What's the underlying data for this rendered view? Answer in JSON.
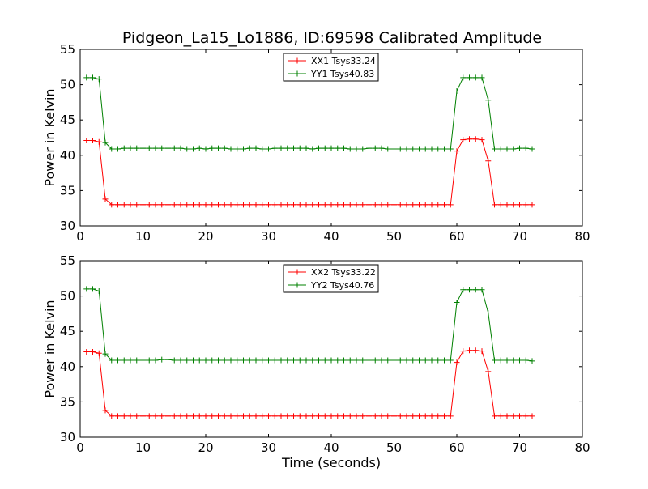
{
  "page": {
    "title": "Pidgeon_La15_Lo1886, ID:69598 Calibrated Amplitude"
  },
  "chart_data": [
    {
      "type": "line",
      "ylabel": "Power in Kelvin",
      "xlabel": "",
      "xlim": [
        0,
        80
      ],
      "ylim": [
        30,
        55
      ],
      "xticks": [
        0,
        10,
        20,
        30,
        40,
        50,
        60,
        70,
        80
      ],
      "yticks": [
        30,
        35,
        40,
        45,
        50,
        55
      ],
      "legend_position": "top-center",
      "x": [
        1,
        2,
        3,
        4,
        5,
        6,
        7,
        8,
        9,
        10,
        11,
        12,
        13,
        14,
        15,
        16,
        17,
        18,
        19,
        20,
        21,
        22,
        23,
        24,
        25,
        26,
        27,
        28,
        29,
        30,
        31,
        32,
        33,
        34,
        35,
        36,
        37,
        38,
        39,
        40,
        41,
        42,
        43,
        44,
        45,
        46,
        47,
        48,
        49,
        50,
        51,
        52,
        53,
        54,
        55,
        56,
        57,
        58,
        59,
        60,
        61,
        62,
        63,
        64,
        65,
        66,
        67,
        68,
        69,
        70,
        71,
        72
      ],
      "series": [
        {
          "name": "XX1 Tsys33.24",
          "color": "#ff0000",
          "values": [
            42.1,
            42.1,
            41.9,
            33.8,
            33.0,
            33.0,
            33.0,
            33.0,
            33.0,
            33.0,
            33.0,
            33.0,
            33.0,
            33.0,
            33.0,
            33.0,
            33.0,
            33.0,
            33.0,
            33.0,
            33.0,
            33.0,
            33.0,
            33.0,
            33.0,
            33.0,
            33.0,
            33.0,
            33.0,
            33.0,
            33.0,
            33.0,
            33.0,
            33.0,
            33.0,
            33.0,
            33.0,
            33.0,
            33.0,
            33.0,
            33.0,
            33.0,
            33.0,
            33.0,
            33.0,
            33.0,
            33.0,
            33.0,
            33.0,
            33.0,
            33.0,
            33.0,
            33.0,
            33.0,
            33.0,
            33.0,
            33.0,
            33.0,
            33.0,
            40.6,
            42.2,
            42.3,
            42.3,
            42.2,
            39.2,
            33.0,
            33.0,
            33.0,
            33.0,
            33.0,
            33.0,
            33.0
          ]
        },
        {
          "name": "YY1 Tsys40.83",
          "color": "#008000",
          "values": [
            51.0,
            51.0,
            50.8,
            41.8,
            40.9,
            40.9,
            41.0,
            41.0,
            41.0,
            41.0,
            41.0,
            41.0,
            41.0,
            41.0,
            41.0,
            41.0,
            40.9,
            40.9,
            41.0,
            40.9,
            41.0,
            41.0,
            41.0,
            40.9,
            40.9,
            40.9,
            41.0,
            41.0,
            40.9,
            40.9,
            41.0,
            41.0,
            41.0,
            41.0,
            41.0,
            41.0,
            40.9,
            41.0,
            41.0,
            41.0,
            41.0,
            41.0,
            40.9,
            40.9,
            40.9,
            41.0,
            41.0,
            41.0,
            40.9,
            40.9,
            40.9,
            40.9,
            40.9,
            40.9,
            40.9,
            40.9,
            40.9,
            40.9,
            40.9,
            49.1,
            51.0,
            51.0,
            51.0,
            51.0,
            47.8,
            40.9,
            40.9,
            40.9,
            40.9,
            41.0,
            41.0,
            40.9
          ]
        }
      ]
    },
    {
      "type": "line",
      "ylabel": "Power in Kelvin",
      "xlabel": "Time (seconds)",
      "xlim": [
        0,
        80
      ],
      "ylim": [
        30,
        55
      ],
      "xticks": [
        0,
        10,
        20,
        30,
        40,
        50,
        60,
        70,
        80
      ],
      "yticks": [
        30,
        35,
        40,
        45,
        50,
        55
      ],
      "legend_position": "top-center",
      "x": [
        1,
        2,
        3,
        4,
        5,
        6,
        7,
        8,
        9,
        10,
        11,
        12,
        13,
        14,
        15,
        16,
        17,
        18,
        19,
        20,
        21,
        22,
        23,
        24,
        25,
        26,
        27,
        28,
        29,
        30,
        31,
        32,
        33,
        34,
        35,
        36,
        37,
        38,
        39,
        40,
        41,
        42,
        43,
        44,
        45,
        46,
        47,
        48,
        49,
        50,
        51,
        52,
        53,
        54,
        55,
        56,
        57,
        58,
        59,
        60,
        61,
        62,
        63,
        64,
        65,
        66,
        67,
        68,
        69,
        70,
        71,
        72
      ],
      "series": [
        {
          "name": "XX2 Tsys33.22",
          "color": "#ff0000",
          "values": [
            42.1,
            42.1,
            41.9,
            33.8,
            33.0,
            33.0,
            33.0,
            33.0,
            33.0,
            33.0,
            33.0,
            33.0,
            33.0,
            33.0,
            33.0,
            33.0,
            33.0,
            33.0,
            33.0,
            33.0,
            33.0,
            33.0,
            33.0,
            33.0,
            33.0,
            33.0,
            33.0,
            33.0,
            33.0,
            33.0,
            33.0,
            33.0,
            33.0,
            33.0,
            33.0,
            33.0,
            33.0,
            33.0,
            33.0,
            33.0,
            33.0,
            33.0,
            33.0,
            33.0,
            33.0,
            33.0,
            33.0,
            33.0,
            33.0,
            33.0,
            33.0,
            33.0,
            33.0,
            33.0,
            33.0,
            33.0,
            33.0,
            33.0,
            33.0,
            40.6,
            42.2,
            42.3,
            42.3,
            42.2,
            39.3,
            33.0,
            33.0,
            33.0,
            33.0,
            33.0,
            33.0,
            33.0
          ]
        },
        {
          "name": "YY2 Tsys40.76",
          "color": "#008000",
          "values": [
            51.0,
            51.0,
            50.7,
            41.8,
            40.9,
            40.9,
            40.9,
            40.9,
            40.9,
            40.9,
            40.9,
            40.9,
            41.0,
            41.0,
            40.9,
            40.9,
            40.9,
            40.9,
            40.9,
            40.9,
            40.9,
            40.9,
            40.9,
            40.9,
            40.9,
            40.9,
            40.9,
            40.9,
            40.9,
            40.9,
            40.9,
            40.9,
            40.9,
            40.9,
            40.9,
            40.9,
            40.9,
            40.9,
            40.9,
            40.9,
            40.9,
            40.9,
            40.9,
            40.9,
            40.9,
            40.9,
            40.9,
            40.9,
            40.9,
            40.9,
            40.9,
            40.9,
            40.9,
            40.9,
            40.9,
            40.9,
            40.9,
            40.9,
            40.9,
            49.1,
            50.9,
            50.9,
            50.9,
            50.9,
            47.6,
            40.9,
            40.9,
            40.9,
            40.9,
            40.9,
            40.9,
            40.8
          ]
        }
      ]
    }
  ]
}
